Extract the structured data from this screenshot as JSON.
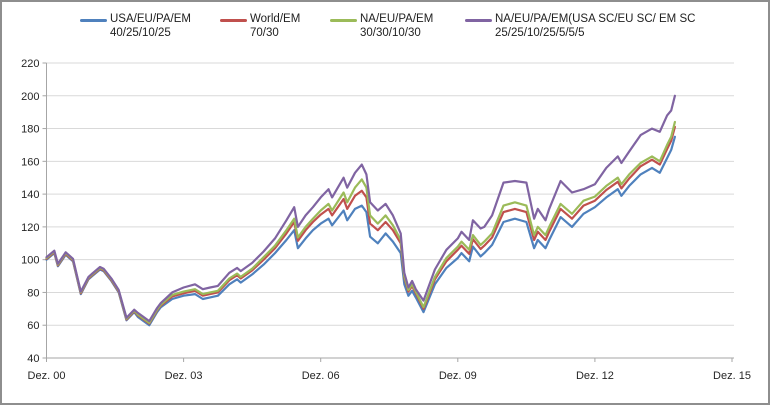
{
  "frame": {
    "background": "#ffffff",
    "border_color": "#8e8e8e"
  },
  "legend": {
    "items": [
      {
        "name": "USA/EU/PA/EM",
        "allocation": "40/25/10/25",
        "color": "#4F81BD",
        "slug": "usa-eu-pa-em"
      },
      {
        "name": "World/EM",
        "allocation": "70/30",
        "color": "#C0504D",
        "slug": "world-em"
      },
      {
        "name": "NA/EU/PA/EM",
        "allocation": "30/30/10/30",
        "color": "#9BBB59",
        "slug": "na-eu-pa-em"
      },
      {
        "name": "NA/EU/PA/EM(USA SC/EU SC/ EM SC",
        "allocation": "25/25/10/25/5/5/5",
        "color": "#8064A2",
        "slug": "na-eu-pa-em-sc"
      }
    ]
  },
  "chart_data": {
    "type": "line",
    "title": "",
    "xlabel": "",
    "ylabel": "",
    "grid": true,
    "x_unit": "years_after_Dez_2000",
    "x_axis": {
      "ticks": [
        "Dez. 00",
        "Dez. 03",
        "Dez. 06",
        "Dez. 09",
        "Dez. 12",
        "Dez. 15"
      ],
      "tick_positions_years": [
        0,
        3,
        6,
        9,
        12,
        15
      ]
    },
    "y_axis": {
      "min": 40,
      "max": 220,
      "step": 20,
      "labels": [
        "40",
        "60",
        "80",
        "100",
        "120",
        "140",
        "160",
        "180",
        "200",
        "220"
      ]
    },
    "x": [
      0,
      0.17,
      0.25,
      0.42,
      0.58,
      0.75,
      0.92,
      1.0,
      1.17,
      1.25,
      1.42,
      1.58,
      1.75,
      1.92,
      2.0,
      2.25,
      2.42,
      2.5,
      2.75,
      3.0,
      3.25,
      3.42,
      3.58,
      3.75,
      4.0,
      4.17,
      4.25,
      4.5,
      4.75,
      5.0,
      5.25,
      5.42,
      5.5,
      5.67,
      5.83,
      6.0,
      6.17,
      6.25,
      6.5,
      6.58,
      6.75,
      6.9,
      7.0,
      7.08,
      7.25,
      7.42,
      7.58,
      7.75,
      7.83,
      7.92,
      8.0,
      8.08,
      8.25,
      8.5,
      8.75,
      9.0,
      9.08,
      9.25,
      9.33,
      9.5,
      9.58,
      9.75,
      10.0,
      10.25,
      10.5,
      10.67,
      10.75,
      10.92,
      11.0,
      11.25,
      11.5,
      11.75,
      12.0,
      12.25,
      12.5,
      12.58,
      12.75,
      13.0,
      13.25,
      13.42,
      13.58,
      13.67,
      13.75
    ],
    "series": [
      {
        "name": "USA/EU/PA/EM 40/25/10/25",
        "color": "#4F81BD",
        "slug": "usa-eu-pa-em",
        "values": [
          100,
          104,
          96,
          103,
          99,
          79,
          88,
          90,
          94,
          93,
          87,
          80,
          63,
          68,
          65,
          60,
          68,
          71,
          76,
          78,
          79,
          76,
          77,
          78,
          85,
          88,
          86,
          91,
          97,
          104,
          112,
          118,
          107,
          113,
          118,
          122,
          125,
          121,
          130,
          124,
          131,
          133,
          129,
          114,
          110,
          116,
          111,
          104,
          85,
          78,
          81,
          77,
          68,
          85,
          95,
          101,
          104,
          99,
          108,
          102,
          104,
          109,
          123,
          125,
          123,
          107,
          112,
          107,
          112,
          126,
          120,
          128,
          132,
          138,
          143,
          139,
          145,
          152,
          156,
          153,
          162,
          167,
          175
        ]
      },
      {
        "name": "World/EM 70/30",
        "color": "#C0504D",
        "slug": "world-em",
        "values": [
          100.5,
          104.5,
          96.5,
          103.5,
          99.5,
          79.5,
          88.5,
          90.5,
          94.5,
          93.5,
          87.5,
          80.5,
          63.5,
          68.5,
          66,
          61,
          69,
          72,
          77.5,
          79.5,
          81,
          78,
          79,
          80,
          87.5,
          90.5,
          88.5,
          93.5,
          100,
          107,
          116,
          123,
          111.5,
          118,
          123,
          127.5,
          131,
          127,
          137,
          131,
          139,
          142,
          138,
          122,
          118,
          123,
          118,
          110,
          89,
          80.5,
          84,
          79.5,
          70,
          88,
          99,
          106,
          108.5,
          103.5,
          112.5,
          106.5,
          108.5,
          113.5,
          129,
          131,
          129,
          112,
          117,
          112,
          117,
          131,
          125,
          133,
          136,
          142.5,
          147.5,
          143.5,
          149.5,
          157,
          161,
          158,
          167.5,
          172.5,
          181
        ]
      },
      {
        "name": "NA/EU/PA/EM 30/30/10/30",
        "color": "#9BBB59",
        "slug": "na-eu-pa-em",
        "values": [
          101,
          105,
          97,
          104,
          100,
          80,
          89,
          91,
          95,
          94,
          88,
          81,
          64,
          69,
          66.5,
          61.5,
          69.5,
          72.5,
          78.5,
          80.5,
          82,
          79,
          80,
          81,
          88.5,
          91.5,
          89.5,
          94.5,
          101.5,
          108.5,
          118,
          125,
          113.5,
          120,
          125,
          130,
          134,
          130,
          141,
          135,
          144,
          149,
          144,
          127,
          122,
          127,
          121,
          112,
          90,
          81.5,
          85,
          80.5,
          71,
          89.5,
          101,
          108,
          111,
          106,
          115,
          109,
          111,
          116,
          133,
          135,
          133,
          115,
          120,
          115,
          120,
          134,
          128,
          136,
          138.5,
          145,
          150,
          146,
          152,
          159,
          163,
          160,
          170,
          175,
          184
        ]
      },
      {
        "name": "NA/EU/PA/EM(USA SC/EU SC/ EM SC 25/25/10/25/5/5/5",
        "color": "#8064A2",
        "slug": "na-eu-pa-em-sc",
        "values": [
          101.5,
          105.5,
          97.5,
          104.5,
          100.5,
          80.5,
          89.5,
          91.5,
          95.5,
          94.5,
          88.5,
          81.5,
          64.5,
          69.5,
          67.5,
          62.5,
          70.5,
          73.5,
          80,
          83,
          85,
          82,
          83,
          84,
          92,
          95,
          93,
          98,
          105,
          113,
          124,
          132,
          120,
          127,
          132,
          138,
          143,
          138,
          150,
          144,
          153,
          158,
          152,
          135,
          130,
          134,
          127,
          116,
          92,
          83,
          87,
          82,
          75,
          94,
          106,
          113,
          117,
          112,
          124,
          119,
          120,
          127,
          147,
          148,
          147,
          125,
          131,
          124,
          131,
          148,
          141,
          143,
          146,
          156,
          163,
          159,
          166,
          176,
          180,
          178,
          188,
          191,
          200
        ]
      }
    ],
    "plot_style": {
      "gridline_color": "#d9d9d9",
      "axis_color": "#a6a6a6",
      "label_color": "#262626",
      "line_width": 2.2
    }
  }
}
